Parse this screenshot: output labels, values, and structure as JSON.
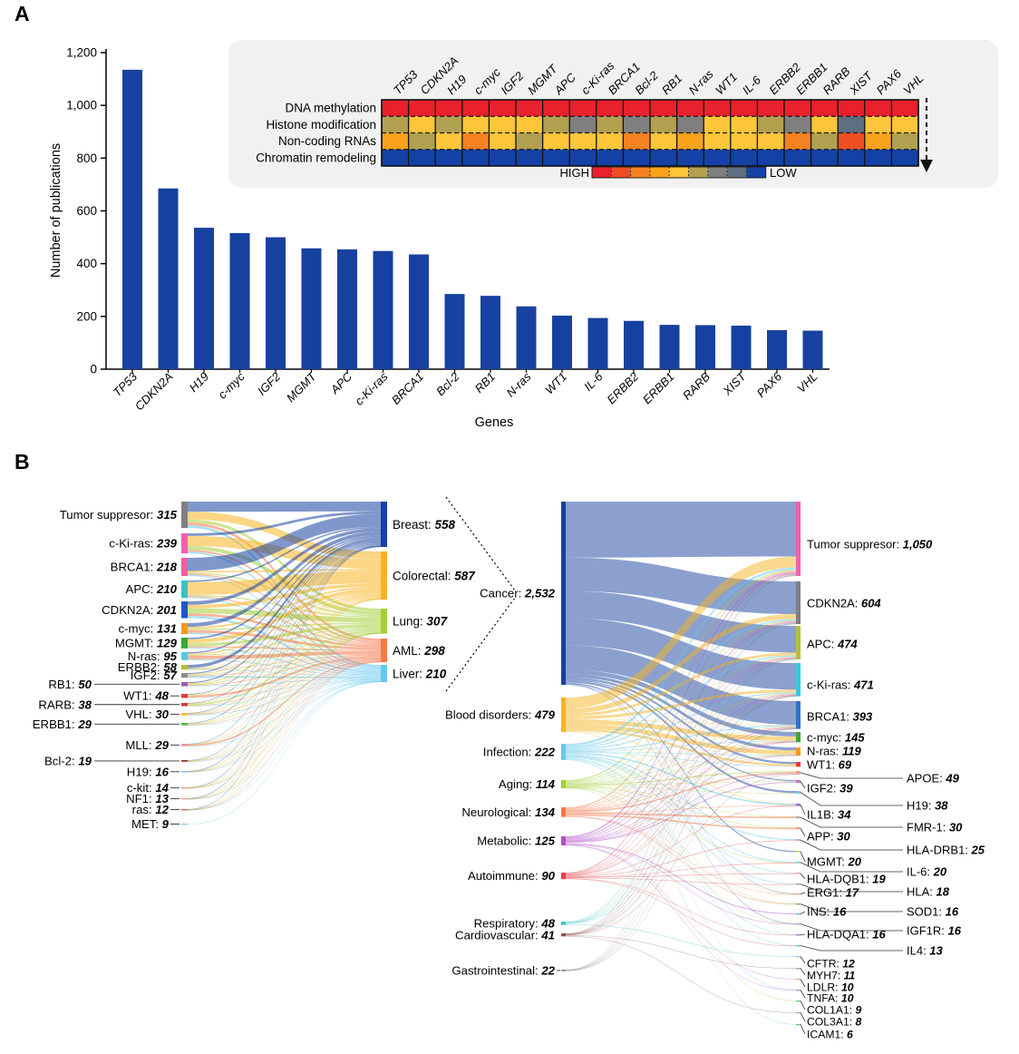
{
  "panels": {
    "a_label": "A",
    "b_label": "B"
  },
  "chart_data": [
    {
      "type": "bar",
      "name": "publications-per-gene",
      "xlabel": "Genes",
      "ylabel": "Number of publications",
      "categories": [
        "TP53",
        "CDKN2A",
        "H19",
        "c-myc",
        "IGF2",
        "MGMT",
        "APC",
        "c-Ki-ras",
        "BRCA1",
        "Bcl-2",
        "RB1",
        "N-ras",
        "WT1",
        "IL-6",
        "ERBB2",
        "ERBB1",
        "RARB",
        "XIST",
        "PAX6",
        "VHL"
      ],
      "values": [
        1135,
        685,
        536,
        516,
        500,
        458,
        454,
        448,
        435,
        285,
        278,
        238,
        203,
        194,
        183,
        168,
        167,
        165,
        148,
        146
      ],
      "ylim": [
        0,
        1200
      ],
      "yticks": [
        {
          "v": 0,
          "label": "0"
        },
        {
          "v": 200,
          "label": "200"
        },
        {
          "v": 400,
          "label": "400"
        },
        {
          "v": 600,
          "label": "600"
        },
        {
          "v": 800,
          "label": "800"
        },
        {
          "v": 1000,
          "label": "1,000"
        },
        {
          "v": 1200,
          "label": "1,200"
        }
      ],
      "bar_color": "#1741a0",
      "grid": false
    },
    {
      "type": "heatmap",
      "name": "epigenetic-mechanism-heatmap",
      "rows": [
        "DNA methylation",
        "Histone modification",
        "Non-coding RNAs",
        "Chromatin remodeling"
      ],
      "columns": [
        "TP53",
        "CDKN2A",
        "H19",
        "c-myc",
        "IGF2",
        "MGMT",
        "APC",
        "c-Ki-ras",
        "BRCA1",
        "Bcl-2",
        "RB1",
        "N-ras",
        "WT1",
        "IL-6",
        "ERBB2",
        "ERBB1",
        "RARB",
        "XIST",
        "PAX6",
        "VHL"
      ],
      "palette": {
        "red": "#e8212c",
        "orange_red": "#ef4e23",
        "orange": "#f58220",
        "gold": "#f9a21b",
        "yellow": "#fcc53a",
        "olive": "#b1a04f",
        "gray": "#7f7f7f",
        "slate": "#5d6f80",
        "blue": "#1441a5"
      },
      "cells": [
        [
          "red",
          "red",
          "red",
          "red",
          "red",
          "red",
          "red",
          "red",
          "red",
          "red",
          "red",
          "red",
          "red",
          "red",
          "red",
          "red",
          "red",
          "red",
          "red",
          "red"
        ],
        [
          "olive",
          "yellow",
          "olive",
          "yellow",
          "yellow",
          "yellow",
          "olive",
          "gray",
          "olive",
          "gray",
          "olive",
          "gray",
          "yellow",
          "yellow",
          "olive",
          "gray",
          "yellow",
          "slate",
          "yellow",
          "yellow"
        ],
        [
          "gold",
          "olive",
          "yellow",
          "orange",
          "yellow",
          "olive",
          "yellow",
          "yellow",
          "yellow",
          "orange",
          "yellow",
          "gold",
          "yellow",
          "yellow",
          "yellow",
          "orange",
          "olive",
          "orange_red",
          "gold",
          "olive"
        ],
        [
          "blue",
          "blue",
          "blue",
          "blue",
          "blue",
          "blue",
          "blue",
          "blue",
          "blue",
          "blue",
          "blue",
          "blue",
          "blue",
          "blue",
          "blue",
          "blue",
          "blue",
          "blue",
          "blue",
          "blue"
        ]
      ],
      "legend": {
        "high_label": "HIGH",
        "low_label": "LOW",
        "order": [
          "red",
          "orange_red",
          "orange",
          "gold",
          "yellow",
          "olive",
          "gray",
          "slate",
          "blue"
        ]
      }
    },
    {
      "type": "sankey",
      "name": "genes-to-cancers",
      "flow_color_by": "target",
      "left_nodes": [
        {
          "label": "Tumor suppresor",
          "value": 315,
          "color": "#7f8084"
        },
        {
          "label": "c-Ki-ras",
          "value": 239,
          "color": "#f25fae"
        },
        {
          "label": "BRCA1",
          "value": 218,
          "color": "#ee5fa0"
        },
        {
          "label": "APC",
          "value": 210,
          "color": "#3cc0c9"
        },
        {
          "label": "CDKN2A",
          "value": 201,
          "color": "#2256c5"
        },
        {
          "label": "c-myc",
          "value": 131,
          "color": "#f8981d"
        },
        {
          "label": "MGMT",
          "value": 129,
          "color": "#3fa535"
        },
        {
          "label": "N-ras",
          "value": 95,
          "color": "#56c5e8"
        },
        {
          "label": "ERBB2",
          "value": 58,
          "color": "#b9bc40"
        },
        {
          "label": "IGF2",
          "value": 57,
          "color": "#8c8c8c"
        },
        {
          "label": "RB1",
          "value": 50,
          "color": "#9b59b6"
        },
        {
          "label": "WT1",
          "value": 48,
          "color": "#e03a3a"
        },
        {
          "label": "RARB",
          "value": 38,
          "color": "#cc3b33"
        },
        {
          "label": "VHL",
          "value": 30,
          "color": "#f2c12e"
        },
        {
          "label": "ERBB1",
          "value": 29,
          "color": "#52b848"
        },
        {
          "label": "MLL",
          "value": 29,
          "color": "#f48fb1"
        },
        {
          "label": "Bcl-2",
          "value": 19,
          "color": "#a03030"
        },
        {
          "label": "H19",
          "value": 16,
          "color": "#7cc8ee"
        },
        {
          "label": "c-kit",
          "value": 14,
          "color": "#f2a07a"
        },
        {
          "label": "NF1",
          "value": 13,
          "color": "#f4a58a"
        },
        {
          "label": "ras",
          "value": 12,
          "color": "#e86050"
        },
        {
          "label": "MET",
          "value": 9,
          "color": "#90cef0"
        }
      ],
      "right_nodes": [
        {
          "label": "Breast",
          "value": 558,
          "color": "#1741a0"
        },
        {
          "label": "Colorectal",
          "value": 587,
          "color": "#f5b422"
        },
        {
          "label": "Lung",
          "value": 307,
          "color": "#a6ce39"
        },
        {
          "label": "AML",
          "value": 298,
          "color": "#f4794b"
        },
        {
          "label": "Liver",
          "value": 210,
          "color": "#66c7ee"
        }
      ]
    },
    {
      "type": "sankey",
      "name": "diseases-to-genes",
      "flow_color_by": "source",
      "left_nodes": [
        {
          "label": "Cancer",
          "value": 2532,
          "color": "#1741a0"
        },
        {
          "label": "Blood disorders",
          "value": 479,
          "color": "#f5b422"
        },
        {
          "label": "Infection",
          "value": 222,
          "color": "#66c7ee"
        },
        {
          "label": "Aging",
          "value": 114,
          "color": "#a6ce39"
        },
        {
          "label": "Neurological",
          "value": 134,
          "color": "#f4794b"
        },
        {
          "label": "Metabolic",
          "value": 125,
          "color": "#b14fc8"
        },
        {
          "label": "Autoimmune",
          "value": 90,
          "color": "#e83f45"
        },
        {
          "label": "Respiratory",
          "value": 48,
          "color": "#3fc9c4"
        },
        {
          "label": "Cardiovascular",
          "value": 41,
          "color": "#8e544e"
        },
        {
          "label": "Gastrointestinal",
          "value": 22,
          "color": "#8c8c8c"
        }
      ],
      "right_nodes": [
        {
          "label": "Tumor suppresor",
          "value": 1050,
          "color": "#f25fae"
        },
        {
          "label": "CDKN2A",
          "value": 604,
          "color": "#7f8084"
        },
        {
          "label": "APC",
          "value": 474,
          "color": "#b9bc40"
        },
        {
          "label": "c-Ki-ras",
          "value": 471,
          "color": "#37c8dc"
        },
        {
          "label": "BRCA1",
          "value": 393,
          "color": "#2d72c8"
        },
        {
          "label": "c-myc",
          "value": 145,
          "color": "#3fa535"
        },
        {
          "label": "N-ras",
          "value": 119,
          "color": "#f8981d"
        },
        {
          "label": "WT1",
          "value": 69,
          "color": "#e03a3a"
        },
        {
          "label": "APOE",
          "value": 49,
          "color": "#f4989c"
        },
        {
          "label": "IGF2",
          "value": 39,
          "color": "#d66cc8"
        },
        {
          "label": "H19",
          "value": 38,
          "color": "#7cc8ee"
        },
        {
          "label": "IL1B",
          "value": 34,
          "color": "#9a6fd0"
        },
        {
          "label": "FMR-1",
          "value": 30,
          "color": "#b0b0b0"
        },
        {
          "label": "APP",
          "value": 30,
          "color": "#f2a07a"
        },
        {
          "label": "HLA-DRB1",
          "value": 25,
          "color": "#d8a0c8"
        },
        {
          "label": "MGMT",
          "value": 20,
          "color": "#c8d44a"
        },
        {
          "label": "IL-6",
          "value": 20,
          "color": "#70d0c8"
        },
        {
          "label": "HLA-DQB1",
          "value": 19,
          "color": "#f0a0b8"
        },
        {
          "label": "HLA",
          "value": 18,
          "color": "#a0a0a0"
        },
        {
          "label": "ERG1",
          "value": 17,
          "color": "#f4a58a"
        },
        {
          "label": "SOD1",
          "value": 16,
          "color": "#909090"
        },
        {
          "label": "INS",
          "value": 16,
          "color": "#58b8e8"
        },
        {
          "label": "IGF1R",
          "value": 16,
          "color": "#c090d8"
        },
        {
          "label": "HLA-DQA1",
          "value": 16,
          "color": "#9a7fd0"
        },
        {
          "label": "IL4",
          "value": 13,
          "color": "#70c8b8"
        },
        {
          "label": "CFTR",
          "value": 12,
          "color": "#8fd0f0"
        },
        {
          "label": "MYH7",
          "value": 11,
          "color": "#9aa8b8"
        },
        {
          "label": "LDLR",
          "value": 10,
          "color": "#f0b090"
        },
        {
          "label": "TNFA",
          "value": 10,
          "color": "#a8a8a8"
        },
        {
          "label": "COL1A1",
          "value": 9,
          "color": "#60c8c0"
        },
        {
          "label": "COL3A1",
          "value": 8,
          "color": "#b0b0a0"
        },
        {
          "label": "ICAM1",
          "value": 6,
          "color": "#78c878"
        }
      ]
    }
  ]
}
